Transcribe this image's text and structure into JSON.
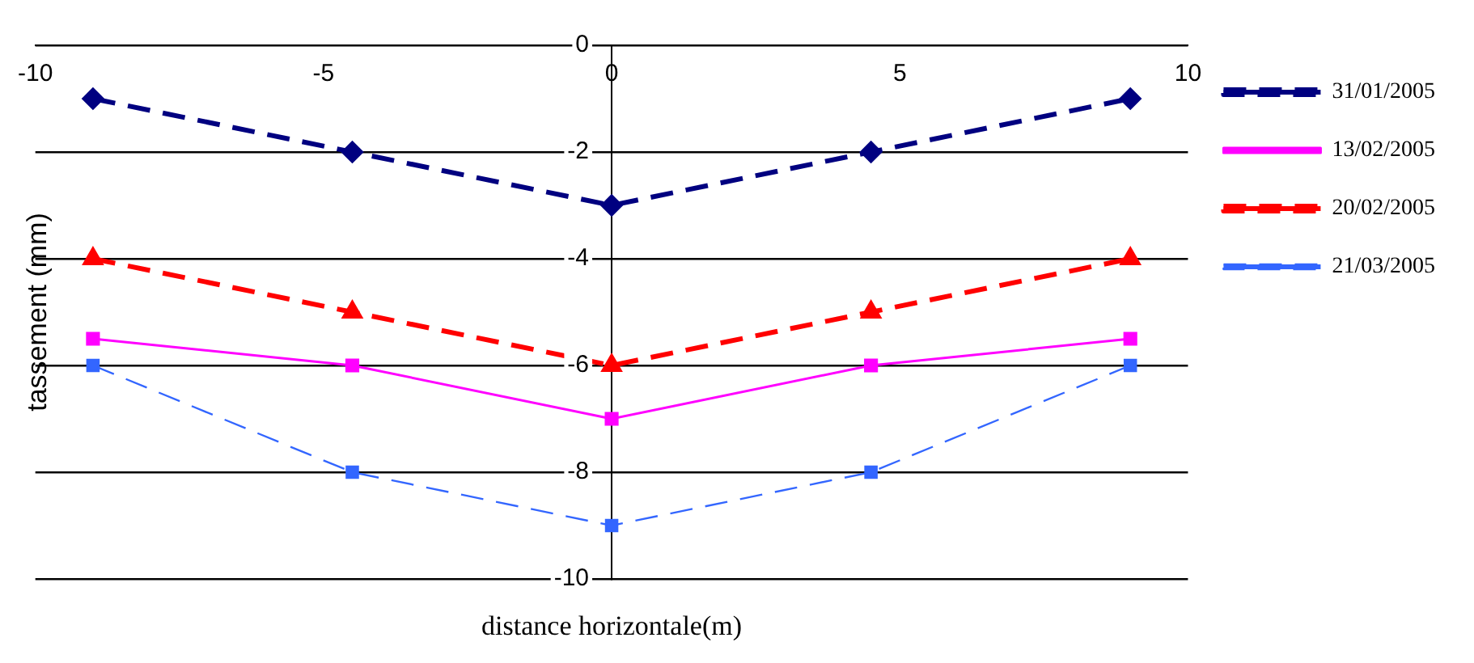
{
  "chart_data": {
    "type": "line",
    "xlabel": "distance horizontale(m)",
    "ylabel": "tassement (mm)",
    "x": [
      -9,
      -4.5,
      0,
      4.5,
      9
    ],
    "xlim": [
      -10,
      10
    ],
    "xticks": [
      -10,
      -5,
      0,
      5,
      10
    ],
    "ylim": [
      -10,
      0
    ],
    "yticks": [
      -10,
      -8,
      -6,
      -4,
      -2,
      0
    ],
    "grid": "y",
    "legend": "top right",
    "series": [
      {
        "name": "31/01/2005",
        "color": "#000080",
        "values": [
          -1,
          -2,
          -3,
          -2,
          -1
        ],
        "marker": "diamond",
        "line_style": "dashed"
      },
      {
        "name": "13/02/2005",
        "color": "#ff00ff",
        "values": [
          -5.5,
          -6,
          -7,
          -6,
          -5.5
        ],
        "marker": "square",
        "line_style": "solid"
      },
      {
        "name": "20/02/2005",
        "color": "#ff0000",
        "values": [
          -4,
          -5,
          -6,
          -5,
          -4
        ],
        "marker": "triangle",
        "line_style": "dashed"
      },
      {
        "name": "21/03/2005",
        "color": "#3366ff",
        "values": [
          -6,
          -8,
          -9,
          -8,
          -6
        ],
        "marker": "square",
        "line_style": "dashed"
      }
    ]
  }
}
